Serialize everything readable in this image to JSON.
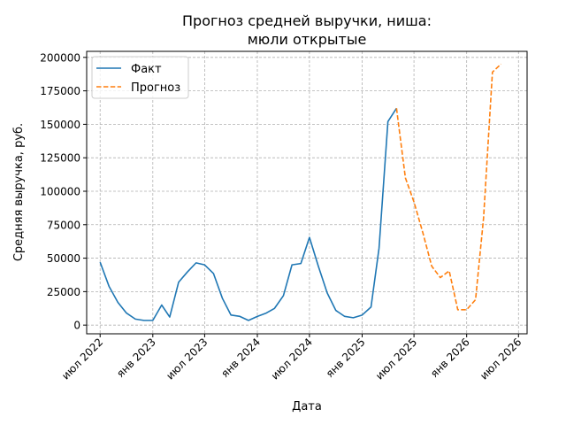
{
  "chart_data": {
    "type": "line",
    "title_line1": "Прогноз средней выручки, ниша:",
    "title_line2": "мюли открытые",
    "xlabel": "Дата",
    "ylabel": "Средняя выручка, руб.",
    "x_ticks": [
      {
        "date": "2022-07-01",
        "label": "июл 2022"
      },
      {
        "date": "2023-01-01",
        "label": "янв 2023"
      },
      {
        "date": "2023-07-01",
        "label": "июл 2023"
      },
      {
        "date": "2024-01-01",
        "label": "янв 2024"
      },
      {
        "date": "2024-07-01",
        "label": "июл 2024"
      },
      {
        "date": "2025-01-01",
        "label": "янв 2025"
      },
      {
        "date": "2025-07-01",
        "label": "июл 2025"
      },
      {
        "date": "2026-01-01",
        "label": "янв 2026"
      },
      {
        "date": "2026-07-01",
        "label": "июл 2026"
      }
    ],
    "xlim": [
      "2022-05-15",
      "2026-07-31"
    ],
    "y_ticks": [
      {
        "value": 0,
        "label": "0"
      },
      {
        "value": 25000,
        "label": "25000"
      },
      {
        "value": 50000,
        "label": "50000"
      },
      {
        "value": 75000,
        "label": "75000"
      },
      {
        "value": 100000,
        "label": "100000"
      },
      {
        "value": 125000,
        "label": "125000"
      },
      {
        "value": 150000,
        "label": "150000"
      },
      {
        "value": 175000,
        "label": "175000"
      },
      {
        "value": 200000,
        "label": "200000"
      }
    ],
    "ylim": [
      -6500,
      204500
    ],
    "grid": true,
    "legend_position": "top-left",
    "series": [
      {
        "name": "Факт",
        "color": "#1f77b4",
        "style": "solid",
        "points": [
          {
            "x": "2022-07-01",
            "y": 47000
          },
          {
            "x": "2022-08-01",
            "y": 29000
          },
          {
            "x": "2022-09-01",
            "y": 17000
          },
          {
            "x": "2022-10-01",
            "y": 9000
          },
          {
            "x": "2022-11-01",
            "y": 4500
          },
          {
            "x": "2022-12-01",
            "y": 3500
          },
          {
            "x": "2023-01-01",
            "y": 3500
          },
          {
            "x": "2023-02-01",
            "y": 15000
          },
          {
            "x": "2023-03-01",
            "y": 6000
          },
          {
            "x": "2023-04-01",
            "y": 32000
          },
          {
            "x": "2023-05-01",
            "y": 39500
          },
          {
            "x": "2023-06-01",
            "y": 46500
          },
          {
            "x": "2023-07-01",
            "y": 45000
          },
          {
            "x": "2023-08-01",
            "y": 38500
          },
          {
            "x": "2023-09-01",
            "y": 20000
          },
          {
            "x": "2023-10-01",
            "y": 7500
          },
          {
            "x": "2023-11-01",
            "y": 6500
          },
          {
            "x": "2023-12-01",
            "y": 3500
          },
          {
            "x": "2024-01-01",
            "y": 6500
          },
          {
            "x": "2024-02-01",
            "y": 9000
          },
          {
            "x": "2024-03-01",
            "y": 12500
          },
          {
            "x": "2024-04-01",
            "y": 22000
          },
          {
            "x": "2024-05-01",
            "y": 45000
          },
          {
            "x": "2024-06-01",
            "y": 46000
          },
          {
            "x": "2024-07-01",
            "y": 65500
          },
          {
            "x": "2024-08-01",
            "y": 44000
          },
          {
            "x": "2024-09-01",
            "y": 24000
          },
          {
            "x": "2024-10-01",
            "y": 11000
          },
          {
            "x": "2024-11-01",
            "y": 6500
          },
          {
            "x": "2024-12-01",
            "y": 5500
          },
          {
            "x": "2025-01-01",
            "y": 7500
          },
          {
            "x": "2025-02-01",
            "y": 13500
          },
          {
            "x": "2025-03-01",
            "y": 57500
          },
          {
            "x": "2025-04-01",
            "y": 152000
          },
          {
            "x": "2025-05-01",
            "y": 162000
          }
        ]
      },
      {
        "name": "Прогноз",
        "color": "#ff7f0e",
        "style": "dashed",
        "points": [
          {
            "x": "2025-05-01",
            "y": 162000
          },
          {
            "x": "2025-06-01",
            "y": 110000
          },
          {
            "x": "2025-07-01",
            "y": 92000
          },
          {
            "x": "2025-08-01",
            "y": 69000
          },
          {
            "x": "2025-09-01",
            "y": 44000
          },
          {
            "x": "2025-10-01",
            "y": 35500
          },
          {
            "x": "2025-11-01",
            "y": 40500
          },
          {
            "x": "2025-12-01",
            "y": 11500
          },
          {
            "x": "2026-01-01",
            "y": 11500
          },
          {
            "x": "2026-02-01",
            "y": 19000
          },
          {
            "x": "2026-03-01",
            "y": 80000
          },
          {
            "x": "2026-04-01",
            "y": 189000
          },
          {
            "x": "2026-05-01",
            "y": 195000
          }
        ]
      }
    ]
  }
}
